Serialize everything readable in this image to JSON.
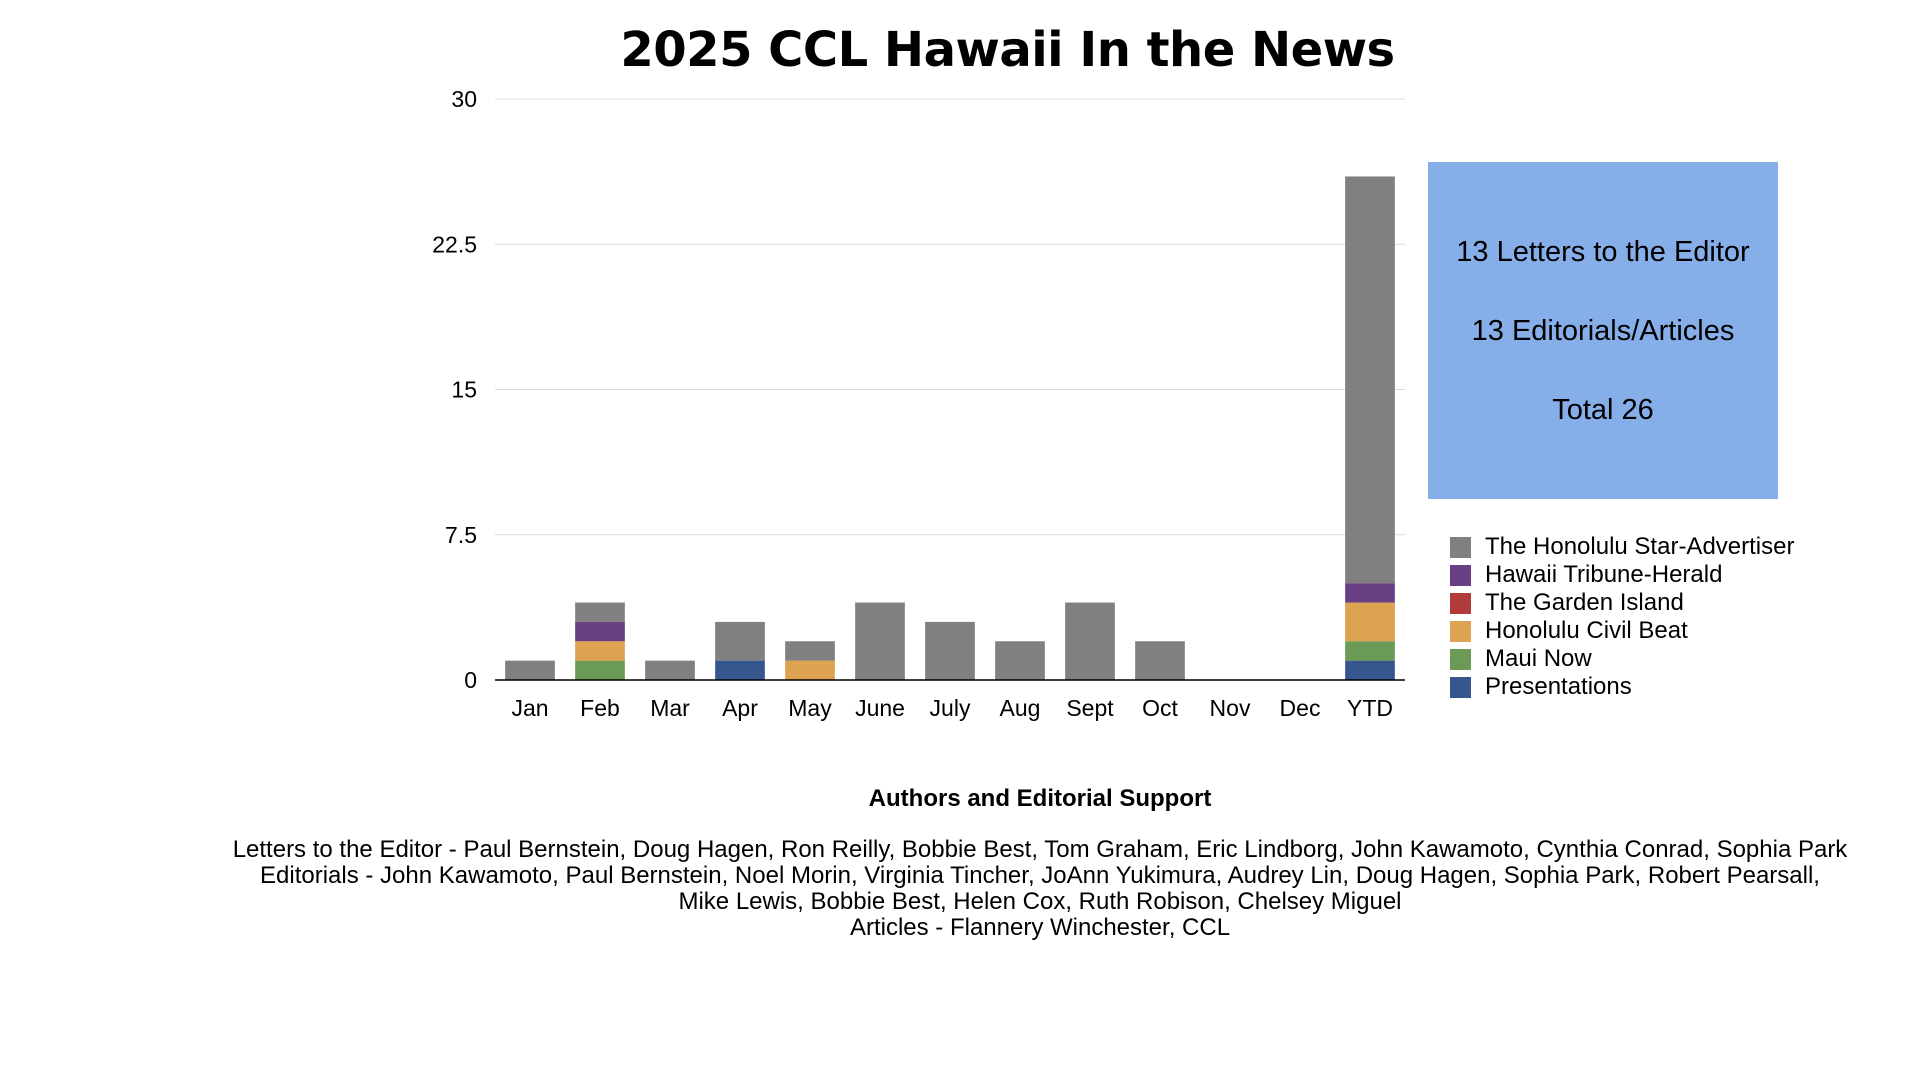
{
  "colors": {
    "Honolulu Star-Advertiser": "#808080",
    "Hawaii Tribune-Herald": "#6a4084",
    "Garden Island": "#b13b3a",
    "Honolulu Civil Beat": "#dda352",
    "Maui Now": "#6a9a55",
    "Presentations": "#35568e",
    "summary_box": "#86aee8"
  },
  "chart_data": {
    "type": "bar",
    "stacked": true,
    "title": "2025 CCL Hawaii In the News",
    "xlabel": "",
    "ylabel": "",
    "ylim": [
      0,
      30
    ],
    "yticks": [
      "0",
      "7.5",
      "15",
      "22.5",
      "30"
    ],
    "grid": true,
    "legend_position": "right",
    "categories": [
      "Jan",
      "Feb",
      "Mar",
      "Apr",
      "May",
      "June",
      "July",
      "Aug",
      "Sept",
      "Oct",
      "Nov",
      "Dec",
      "YTD"
    ],
    "series": [
      {
        "name": "Presentations",
        "key": "Presentations",
        "values": [
          0,
          0,
          0,
          1,
          0,
          0,
          0,
          0,
          0,
          0,
          0,
          0,
          1
        ]
      },
      {
        "name": "Maui Now",
        "key": "Maui Now",
        "values": [
          0,
          1,
          0,
          0,
          0,
          0,
          0,
          0,
          0,
          0,
          0,
          0,
          1
        ]
      },
      {
        "name": "Honolulu Civil Beat",
        "key": "Honolulu Civil Beat",
        "values": [
          0,
          1,
          0,
          0,
          1,
          0,
          0,
          0,
          0,
          0,
          0,
          0,
          2
        ]
      },
      {
        "name": "The Garden Island",
        "key": "Garden Island",
        "values": [
          0,
          0,
          0,
          0,
          0,
          0,
          0,
          0,
          0,
          0,
          0,
          0,
          0
        ]
      },
      {
        "name": "Hawaii Tribune-Herald",
        "key": "Hawaii Tribune-Herald",
        "values": [
          0,
          1,
          0,
          0,
          0,
          0,
          0,
          0,
          0,
          0,
          0,
          0,
          1
        ]
      },
      {
        "name": "The Honolulu Star-Advertiser",
        "key": "Honolulu Star-Advertiser",
        "values": [
          1,
          1,
          1,
          2,
          1,
          4,
          3,
          2,
          4,
          2,
          0,
          0,
          21
        ]
      }
    ]
  },
  "summary": {
    "letters": "13 Letters to the Editor",
    "editorials": "13 Editorials/Articles",
    "total": "Total 26"
  },
  "legend": [
    {
      "label": "The Honolulu Star-Advertiser",
      "key": "Honolulu Star-Advertiser"
    },
    {
      "label": "Hawaii Tribune-Herald",
      "key": "Hawaii Tribune-Herald"
    },
    {
      "label": "The Garden Island",
      "key": "Garden Island"
    },
    {
      "label": "Honolulu Civil Beat",
      "key": "Honolulu Civil Beat"
    },
    {
      "label": "Maui Now",
      "key": "Maui Now"
    },
    {
      "label": "Presentations",
      "key": "Presentations"
    }
  ],
  "authors": {
    "heading": "Authors and Editorial Support",
    "lines": [
      "Letters to the Editor - Paul Bernstein, Doug Hagen, Ron Reilly, Bobbie Best, Tom Graham, Eric Lindborg, John Kawamoto, Cynthia Conrad, Sophia Park",
      "Editorials -  John Kawamoto, Paul Bernstein, Noel Morin, Virginia Tincher, JoAnn Yukimura, Audrey Lin, Doug Hagen, Sophia Park, Robert Pearsall,",
      "Mike Lewis, Bobbie Best, Helen Cox, Ruth Robison, Chelsey Miguel",
      "Articles - Flannery Winchester, CCL"
    ]
  }
}
